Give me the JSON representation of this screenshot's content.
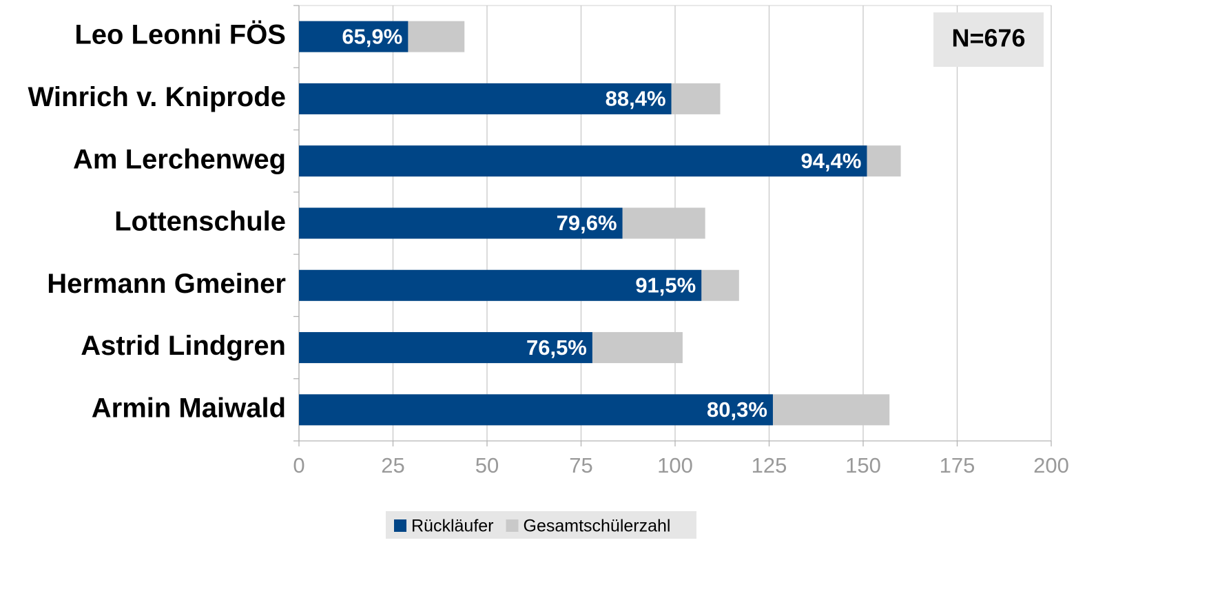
{
  "chart_data": {
    "type": "bar",
    "orientation": "horizontal",
    "overlap": true,
    "categories": [
      "Leo Leonni FÖS",
      "Winrich v. Kniprode",
      "Am Lerchenweg",
      "Lottenschule",
      "Hermann Gmeiner",
      "Astrid Lindgren",
      "Armin Maiwald"
    ],
    "series": [
      {
        "name": "Gesamtschülerzahl",
        "color": "#c9c9c9",
        "values": [
          44,
          112,
          160,
          108,
          117,
          102,
          157
        ]
      },
      {
        "name": "Rückläufer",
        "color": "#004586",
        "values": [
          29,
          99,
          151,
          86,
          107,
          78,
          126
        ],
        "bar_labels": [
          "65,9%",
          "88,4%",
          "94,4%",
          "79,6%",
          "91,5%",
          "76,5%",
          "80,3%"
        ]
      }
    ],
    "legend_order": [
      1,
      0
    ],
    "xlim": [
      0,
      200
    ],
    "xticks": [
      0,
      25,
      50,
      75,
      100,
      125,
      150,
      175,
      200
    ],
    "grid": true,
    "annotation": "N=676"
  }
}
